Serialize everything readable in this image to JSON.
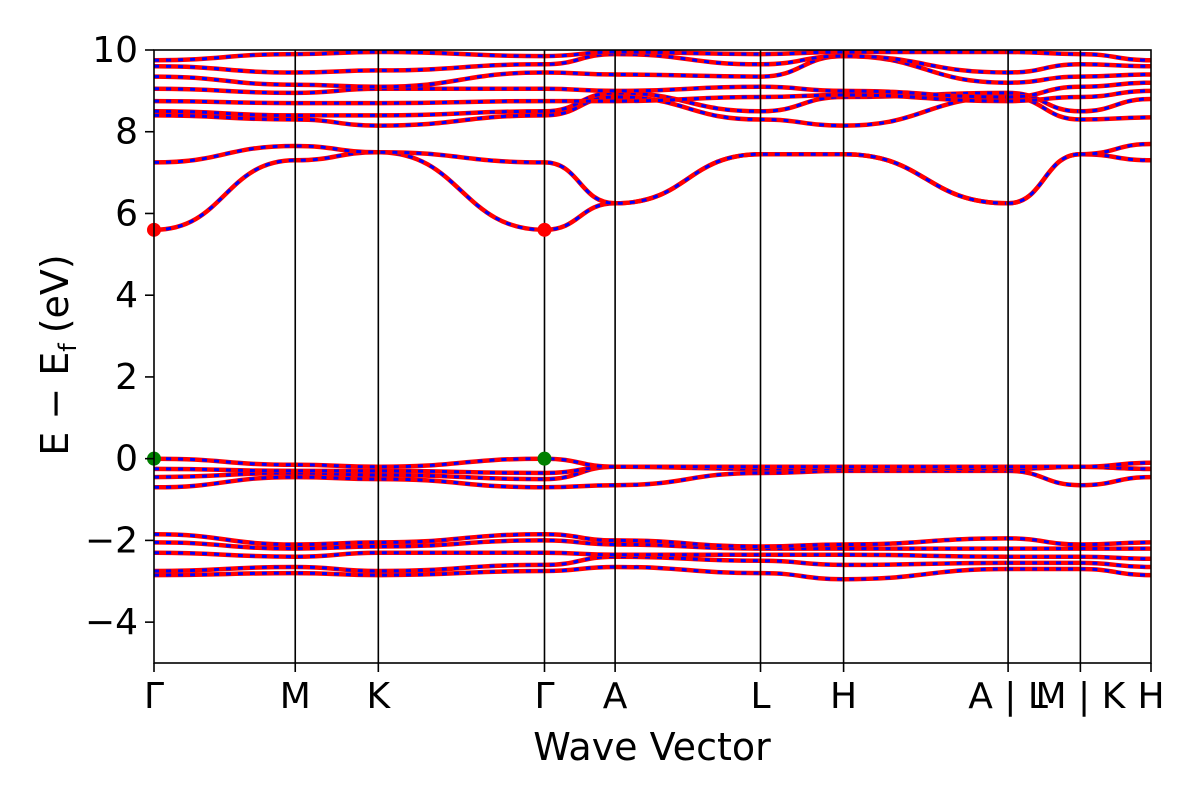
{
  "chart_data": {
    "type": "line",
    "xlabel": "Wave Vector",
    "ylabel": "E − E",
    "ylabel_sub": "f",
    "ylabel_unit": "(eV)",
    "ylim": [
      -5,
      10
    ],
    "y_ticks": [
      {
        "value": -4,
        "label": "−4"
      },
      {
        "value": -2,
        "label": "−2"
      },
      {
        "value": 0,
        "label": "0"
      },
      {
        "value": 2,
        "label": "2"
      },
      {
        "value": 4,
        "label": "4"
      },
      {
        "value": 6,
        "label": "6"
      },
      {
        "value": 8,
        "label": "8"
      },
      {
        "value": 10,
        "label": "10"
      }
    ],
    "xlim": [
      0,
      12.0
    ],
    "k_points": [
      {
        "label": "Γ",
        "x": 0.0
      },
      {
        "label": "M",
        "x": 1.7
      },
      {
        "label": "K",
        "x": 2.7
      },
      {
        "label": "Γ",
        "x": 4.7
      },
      {
        "label": "A",
        "x": 5.55
      },
      {
        "label": "L",
        "x": 7.3
      },
      {
        "label": "H",
        "x": 8.3
      },
      {
        "label": "A | L",
        "x": 10.28
      },
      {
        "label": "M | K",
        "x": 11.15
      },
      {
        "label": "H",
        "x": 12.0
      }
    ],
    "path_breaks": [
      10.28,
      11.15
    ],
    "segments": [
      [
        0.0,
        10.28
      ],
      [
        10.28,
        11.15
      ],
      [
        11.15,
        12.0
      ]
    ],
    "bands": [
      {
        "y": [
          -0.7,
          -0.45,
          -0.5,
          -0.7,
          -0.65,
          -0.35,
          -0.3,
          -0.3,
          -0.65,
          -0.45,
          -0.3,
          -0.3
        ]
      },
      {
        "y": [
          -0.45,
          -0.35,
          -0.4,
          -0.5,
          -0.2,
          -0.25,
          -0.25,
          -0.25,
          -0.2,
          -0.25,
          -0.35,
          -0.25
        ]
      },
      {
        "y": [
          -0.25,
          -0.3,
          -0.3,
          -0.35,
          -0.2,
          -0.2,
          -0.2,
          -0.25,
          -0.2,
          -0.25,
          -0.2,
          -0.25
        ]
      },
      {
        "y": [
          0.0,
          -0.15,
          -0.2,
          0.0,
          -0.2,
          -0.2,
          -0.2,
          -0.2,
          -0.2,
          -0.1,
          -0.1,
          -0.2
        ]
      },
      {
        "y": [
          -2.85,
          -2.8,
          -2.85,
          -2.75,
          -2.65,
          -2.8,
          -2.95,
          -2.7,
          -2.7,
          -2.85,
          -2.95,
          -3.0
        ]
      },
      {
        "y": [
          -2.75,
          -2.65,
          -2.75,
          -2.6,
          -2.4,
          -2.5,
          -2.6,
          -2.55,
          -2.55,
          -2.65,
          -2.7,
          -2.75
        ]
      },
      {
        "y": [
          -2.3,
          -2.4,
          -2.3,
          -2.3,
          -2.35,
          -2.35,
          -2.35,
          -2.4,
          -2.4,
          -2.45,
          -2.4,
          -2.4
        ]
      },
      {
        "y": [
          -2.05,
          -2.2,
          -2.15,
          -2.0,
          -2.1,
          -2.2,
          -2.2,
          -2.2,
          -2.2,
          -2.2,
          -2.1,
          -2.2
        ]
      },
      {
        "y": [
          -1.85,
          -2.1,
          -2.05,
          -1.85,
          -2.0,
          -2.15,
          -2.1,
          -1.95,
          -2.1,
          -2.05,
          -2.05,
          -2.1
        ]
      },
      {
        "y": [
          5.6,
          7.3,
          7.5,
          5.6,
          6.25,
          7.45,
          7.45,
          6.25,
          7.45,
          7.3,
          7.5,
          7.45
        ]
      },
      {
        "y": [
          7.25,
          7.65,
          7.5,
          7.25,
          6.25,
          7.45,
          7.45,
          6.25,
          7.45,
          7.7,
          7.5,
          7.45
        ]
      },
      {
        "y": [
          8.4,
          8.3,
          8.15,
          8.4,
          8.85,
          8.3,
          8.15,
          8.85,
          8.3,
          8.35,
          8.15,
          8.2
        ]
      },
      {
        "y": [
          8.5,
          8.4,
          8.4,
          8.5,
          8.95,
          8.5,
          8.85,
          8.95,
          8.5,
          8.8,
          8.85,
          8.9
        ]
      },
      {
        "y": [
          8.75,
          8.7,
          8.7,
          8.75,
          8.75,
          8.85,
          8.9,
          8.75,
          8.85,
          9.0,
          8.95,
          8.9
        ]
      },
      {
        "y": [
          9.05,
          8.95,
          9.05,
          9.05,
          9.0,
          9.1,
          9.0,
          8.85,
          9.1,
          9.2,
          9.1,
          9.15
        ]
      },
      {
        "y": [
          9.35,
          9.15,
          9.1,
          9.45,
          9.4,
          9.35,
          9.85,
          9.2,
          9.35,
          9.4,
          9.3,
          9.15
        ]
      },
      {
        "y": [
          9.6,
          9.45,
          9.5,
          9.65,
          9.9,
          9.65,
          9.85,
          9.45,
          9.65,
          9.6,
          9.6,
          9.8
        ]
      },
      {
        "y": [
          9.75,
          9.9,
          9.95,
          9.85,
          9.95,
          9.9,
          9.95,
          9.95,
          9.9,
          9.75,
          9.8,
          9.85
        ]
      }
    ],
    "markers": [
      {
        "x": 0.0,
        "y": 5.6,
        "kind": "cbm",
        "color": "#ff0000"
      },
      {
        "x": 4.7,
        "y": 5.6,
        "kind": "cbm",
        "color": "#ff0000"
      },
      {
        "x": 0.0,
        "y": 0.0,
        "kind": "vbm",
        "color": "#008000"
      },
      {
        "x": 4.7,
        "y": 0.0,
        "kind": "vbm",
        "color": "#008000"
      }
    ],
    "colors": {
      "band_red": "#ff0000",
      "band_blue": "#0000ff",
      "axis": "#000000",
      "vline": "#000000"
    }
  }
}
